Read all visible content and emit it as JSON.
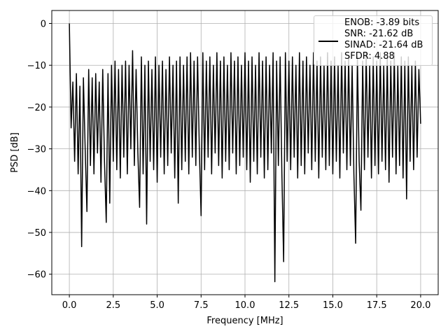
{
  "chart_data": {
    "type": "line",
    "xlabel": "Frequency [MHz]",
    "ylabel": "PSD [dB]",
    "x": [
      0,
      0.1,
      0.2,
      0.3,
      0.4,
      0.5,
      0.6,
      0.7,
      0.8,
      0.9,
      1,
      1.1,
      1.2,
      1.3,
      1.4,
      1.5,
      1.6,
      1.7,
      1.8,
      1.9,
      2,
      2.1,
      2.2,
      2.3,
      2.4,
      2.5,
      2.6,
      2.7,
      2.8,
      2.9,
      3,
      3.1,
      3.2,
      3.3,
      3.4,
      3.5,
      3.6,
      3.7,
      3.8,
      3.9,
      4,
      4.1,
      4.2,
      4.3,
      4.4,
      4.5,
      4.6,
      4.7,
      4.8,
      4.9,
      5,
      5.1,
      5.2,
      5.3,
      5.4,
      5.5,
      5.6,
      5.7,
      5.8,
      5.9,
      6,
      6.1,
      6.2,
      6.3,
      6.4,
      6.5,
      6.6,
      6.7,
      6.8,
      6.9,
      7,
      7.1,
      7.2,
      7.3,
      7.4,
      7.5,
      7.6,
      7.7,
      7.8,
      7.9,
      8,
      8.1,
      8.2,
      8.3,
      8.4,
      8.5,
      8.6,
      8.7,
      8.8,
      8.9,
      9,
      9.1,
      9.2,
      9.3,
      9.4,
      9.5,
      9.6,
      9.7,
      9.8,
      9.9,
      10,
      10.1,
      10.2,
      10.3,
      10.4,
      10.5,
      10.6,
      10.7,
      10.8,
      10.9,
      11,
      11.1,
      11.2,
      11.3,
      11.4,
      11.5,
      11.6,
      11.7,
      11.8,
      11.9,
      12,
      12.1,
      12.2,
      12.3,
      12.4,
      12.5,
      12.6,
      12.7,
      12.8,
      12.9,
      13,
      13.1,
      13.2,
      13.3,
      13.4,
      13.5,
      13.6,
      13.7,
      13.8,
      13.9,
      14,
      14.1,
      14.2,
      14.3,
      14.4,
      14.5,
      14.6,
      14.7,
      14.8,
      14.9,
      15,
      15.1,
      15.2,
      15.3,
      15.4,
      15.5,
      15.6,
      15.7,
      15.8,
      15.9,
      16,
      16.1,
      16.2,
      16.3,
      16.4,
      16.5,
      16.6,
      16.7,
      16.8,
      16.9,
      17,
      17.1,
      17.2,
      17.3,
      17.4,
      17.5,
      17.6,
      17.7,
      17.8,
      17.9,
      18,
      18.1,
      18.2,
      18.3,
      18.4,
      18.5,
      18.6,
      18.7,
      18.8,
      18.9,
      19,
      19.1,
      19.2,
      19.3,
      19.4,
      19.5,
      19.6,
      19.7,
      19.8,
      19.9,
      20
    ],
    "series": [
      {
        "name": "ENOB: -3.89 bits\nSNR: -21.62 dB\nSINAD: -21.64 dB\nSFDR: 4.88",
        "color": "#000000",
        "values": [
          0,
          -25,
          -14,
          -33,
          -12,
          -36,
          -15,
          -53.4,
          -13,
          -30,
          -45,
          -11,
          -34,
          -13,
          -36,
          -12,
          -31,
          -14,
          -38,
          -11,
          -33,
          -47.6,
          -12,
          -43,
          -10,
          -33,
          -9,
          -35,
          -11,
          -37,
          -10,
          -32,
          -9,
          -36,
          -10,
          -30,
          -6.5,
          -34,
          -11,
          -31,
          -44,
          -8,
          -36,
          -10,
          -48,
          -9,
          -33,
          -11,
          -35,
          -8,
          -38,
          -10,
          -32,
          -9,
          -36,
          -11,
          -34,
          -8,
          -31,
          -10,
          -37,
          -9,
          -43,
          -8,
          -35,
          -10,
          -33,
          -8,
          -36,
          -7,
          -32,
          -9,
          -34,
          -8,
          -30,
          -46,
          -7,
          -35,
          -9,
          -32,
          -8,
          -36,
          -10,
          -31,
          -7,
          -34,
          -9,
          -37,
          -8,
          -33,
          -10,
          -35,
          -7,
          -31,
          -9,
          -36,
          -8,
          -34,
          -10,
          -32,
          -7,
          -35,
          -9,
          -38,
          -8,
          -33,
          -10,
          -36,
          -7,
          -32,
          -9,
          -37,
          -8,
          -35,
          -10,
          -31,
          -7,
          -61.8,
          -9,
          -34,
          -8,
          -36,
          -57,
          -7,
          -33,
          -9,
          -35,
          -8,
          -32,
          -10,
          -37,
          -7,
          -34,
          -9,
          -36,
          -8,
          -31,
          -10,
          -35,
          -7,
          -33,
          -9,
          -37,
          -8,
          -32,
          -10,
          -35,
          -7,
          -34,
          -9,
          -36,
          -8,
          -33,
          -10,
          -37,
          -7,
          -31,
          -9,
          -35,
          -8,
          -34,
          -10,
          -36,
          -52.6,
          -8,
          -33,
          -44.7,
          -9,
          -35,
          -7,
          -32,
          -10,
          -37,
          -8,
          -34,
          -9,
          -36,
          -7,
          -33,
          -10,
          -35,
          -8,
          -38,
          -9,
          -32,
          -7,
          -36,
          -10,
          -34,
          -8,
          -37,
          -9,
          -42,
          -8,
          -33,
          -10,
          -35,
          -9,
          -32,
          -11,
          -24
        ]
      }
    ],
    "xlim": [
      -1,
      21
    ],
    "xticks": [
      {
        "value": 0,
        "label": "0.0"
      },
      {
        "value": 2.5,
        "label": "2.5"
      },
      {
        "value": 5,
        "label": "5.0"
      },
      {
        "value": 7.5,
        "label": "7.5"
      },
      {
        "value": 10,
        "label": "10.0"
      },
      {
        "value": 12.5,
        "label": "12.5"
      },
      {
        "value": 15,
        "label": "15.0"
      },
      {
        "value": 17.5,
        "label": "17.5"
      },
      {
        "value": 20,
        "label": "20.0"
      }
    ],
    "ylim": [
      -64.9,
      3.1
    ],
    "yticks": [
      0,
      {
        "value": -10,
        "label": "−10"
      },
      {
        "value": -20,
        "label": "−20"
      },
      {
        "value": -30,
        "label": "−30"
      },
      {
        "value": -40,
        "label": "−40"
      },
      {
        "value": -50,
        "label": "−50"
      },
      {
        "value": -60,
        "label": "−60"
      }
    ],
    "grid": true,
    "legend": "upper right"
  }
}
